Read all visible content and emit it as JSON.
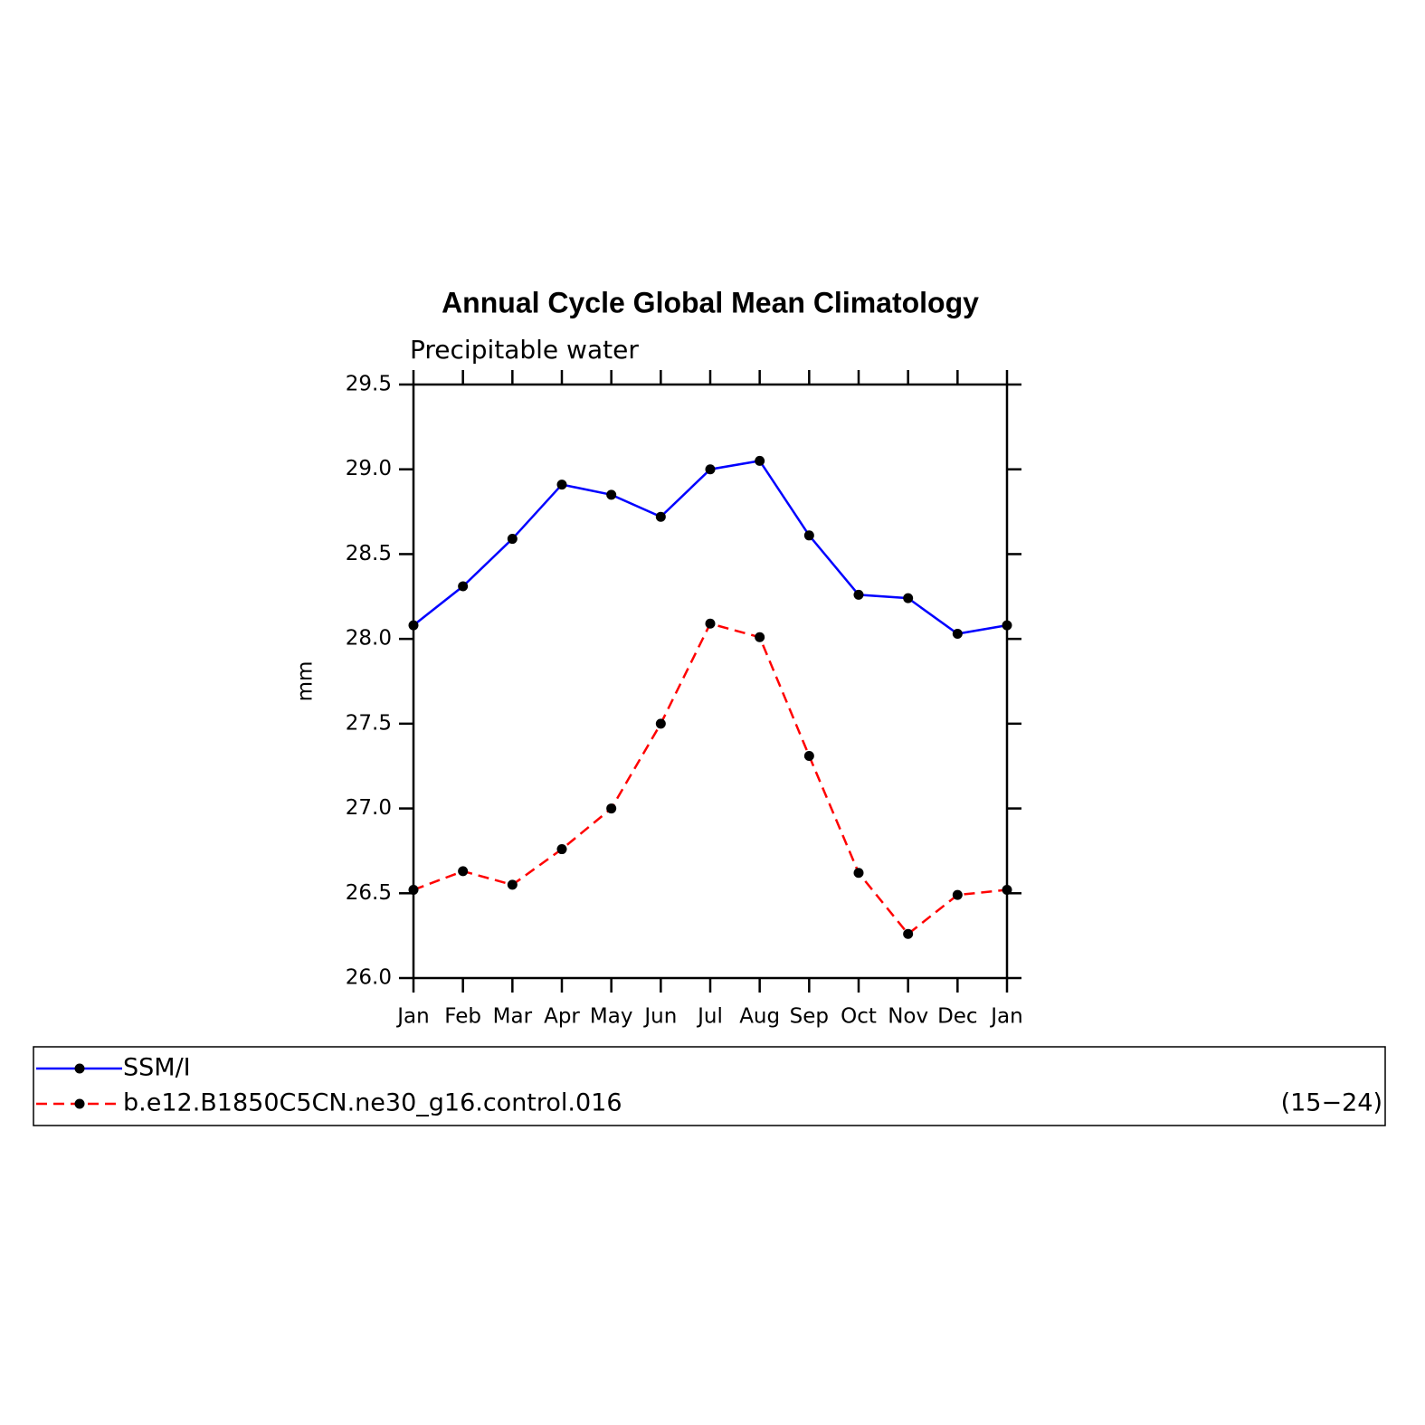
{
  "chart_data": {
    "type": "line",
    "title": "Annual Cycle Global Mean Climatology",
    "subtitle": "Precipitable water",
    "ylabel": "mm",
    "categories": [
      "Jan",
      "Feb",
      "Mar",
      "Apr",
      "May",
      "Jun",
      "Jul",
      "Aug",
      "Sep",
      "Oct",
      "Nov",
      "Dec",
      "Jan"
    ],
    "series": [
      {
        "name": "SSM/I",
        "color": "#0000ff",
        "dash": false,
        "values": [
          28.08,
          28.31,
          28.59,
          28.91,
          28.85,
          28.72,
          29.0,
          29.05,
          28.61,
          28.26,
          28.24,
          28.03,
          28.08
        ]
      },
      {
        "name": "b.e12.B1850C5CN.ne30_g16.control.016",
        "color": "#ff0000",
        "dash": true,
        "note": "(15−24)",
        "values": [
          26.52,
          26.63,
          26.55,
          26.76,
          27.0,
          27.5,
          28.09,
          28.01,
          27.31,
          26.62,
          26.26,
          26.49,
          26.52
        ]
      }
    ],
    "ylim": [
      26,
      29.5
    ],
    "yticks": [
      {
        "value": 26,
        "label": "26.0"
      },
      26.5,
      {
        "value": 27,
        "label": "27.0"
      },
      27.5,
      {
        "value": 28,
        "label": "28.0"
      },
      28.5,
      {
        "value": 29,
        "label": "29.0"
      },
      29.5
    ],
    "marker_color": "#000000"
  }
}
